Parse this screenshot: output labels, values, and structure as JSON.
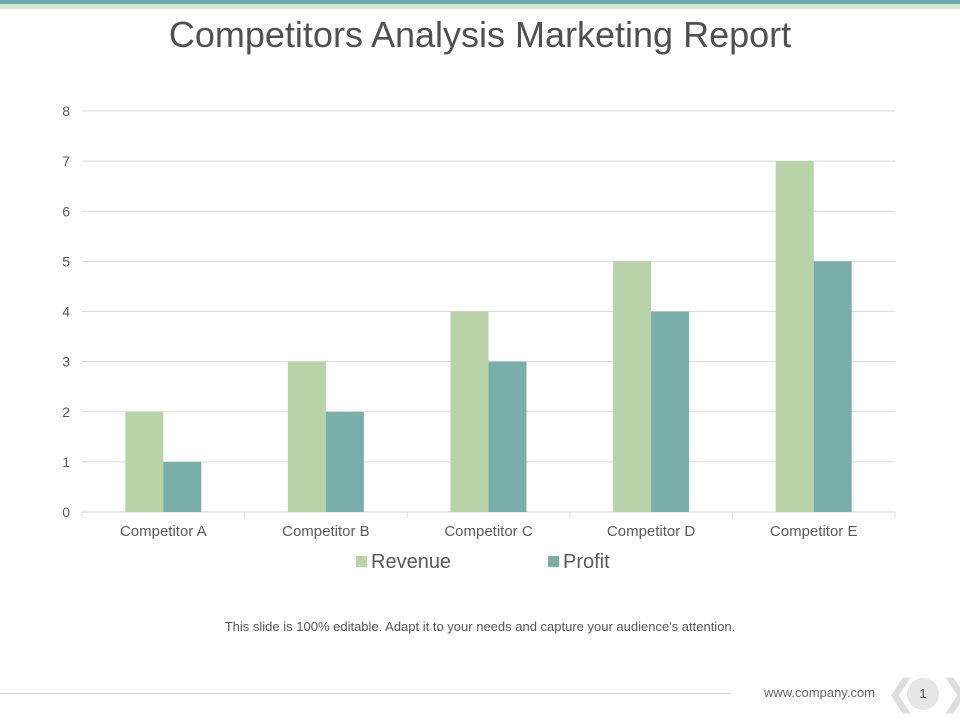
{
  "slide": {
    "title": "Competitors Analysis Marketing Report",
    "caption": "This slide is 100% editable. Adapt it to your needs and capture your audience's attention.",
    "footer_url": "www.company.com",
    "page_number": "1"
  },
  "colors": {
    "accent_teal": "#6aa7ab",
    "accent_light_green": "#d5e6d0",
    "revenue": "#b9d3a9",
    "profit": "#79aeab"
  },
  "chart_data": {
    "type": "bar",
    "categories": [
      "Competitor A",
      "Competitor B",
      "Competitor C",
      "Competitor D",
      "Competitor E"
    ],
    "series": [
      {
        "name": "Revenue",
        "values": [
          2,
          3,
          4,
          5,
          7
        ]
      },
      {
        "name": "Profit",
        "values": [
          1,
          2,
          3,
          4,
          5
        ]
      }
    ],
    "ylim": [
      0,
      8
    ],
    "yticks": [
      0,
      1,
      2,
      3,
      4,
      5,
      6,
      7,
      8
    ],
    "grid": true,
    "legend": "bottom"
  }
}
